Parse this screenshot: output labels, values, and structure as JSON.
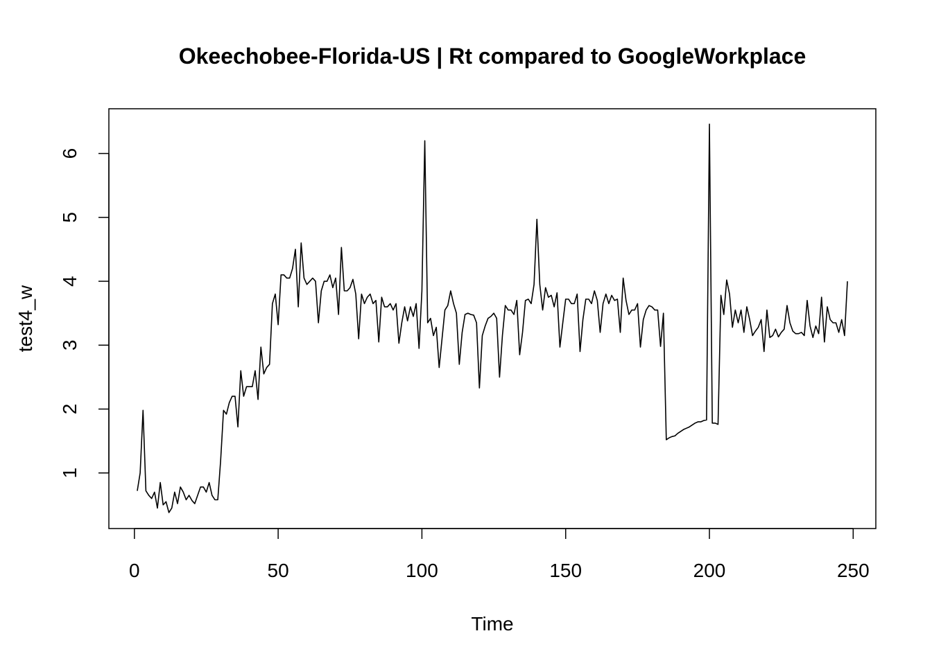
{
  "chart_data": {
    "type": "line",
    "title": "Okeechobee-Florida-US | Rt compared to GoogleWorkplace",
    "xlabel": "Time",
    "ylabel": "test4_w",
    "color": "#000000",
    "x": [
      1,
      2,
      3,
      4,
      5,
      6,
      7,
      8,
      9,
      10,
      11,
      12,
      13,
      14,
      15,
      16,
      17,
      18,
      19,
      20,
      21,
      22,
      23,
      24,
      25,
      26,
      27,
      28,
      29,
      30,
      31,
      32,
      33,
      34,
      35,
      36,
      37,
      38,
      39,
      40,
      41,
      42,
      43,
      44,
      45,
      46,
      47,
      48,
      49,
      50,
      51,
      52,
      53,
      54,
      55,
      56,
      57,
      58,
      59,
      60,
      61,
      62,
      63,
      64,
      65,
      66,
      67,
      68,
      69,
      70,
      71,
      72,
      73,
      74,
      75,
      76,
      77,
      78,
      79,
      80,
      81,
      82,
      83,
      84,
      85,
      86,
      87,
      88,
      89,
      90,
      91,
      92,
      93,
      94,
      95,
      96,
      97,
      98,
      99,
      100,
      101,
      102,
      103,
      104,
      105,
      106,
      107,
      108,
      109,
      110,
      111,
      112,
      113,
      114,
      115,
      116,
      117,
      118,
      119,
      120,
      121,
      122,
      123,
      124,
      125,
      126,
      127,
      128,
      129,
      130,
      131,
      132,
      133,
      134,
      135,
      136,
      137,
      138,
      139,
      140,
      141,
      142,
      143,
      144,
      145,
      146,
      147,
      148,
      149,
      150,
      151,
      152,
      153,
      154,
      155,
      156,
      157,
      158,
      159,
      160,
      161,
      162,
      163,
      164,
      165,
      166,
      167,
      168,
      169,
      170,
      171,
      172,
      173,
      174,
      175,
      176,
      177,
      178,
      179,
      180,
      181,
      182,
      183,
      184,
      185,
      186,
      187,
      188,
      189,
      190,
      191,
      192,
      193,
      194,
      195,
      196,
      197,
      198,
      199,
      200,
      201,
      202,
      203,
      204,
      205,
      206,
      207,
      208,
      209,
      210,
      211,
      212,
      213,
      214,
      215,
      216,
      217,
      218,
      219,
      220,
      221,
      222,
      223,
      224,
      225,
      226,
      227,
      228,
      229,
      230,
      231,
      232,
      233,
      234,
      235,
      236,
      237,
      238,
      239,
      240,
      241,
      242,
      243,
      244,
      245,
      246,
      247,
      248
    ],
    "values": [
      0.72,
      1.0,
      1.98,
      0.72,
      0.65,
      0.6,
      0.7,
      0.45,
      0.85,
      0.5,
      0.55,
      0.38,
      0.45,
      0.7,
      0.52,
      0.78,
      0.7,
      0.58,
      0.65,
      0.57,
      0.52,
      0.65,
      0.78,
      0.78,
      0.7,
      0.85,
      0.65,
      0.58,
      0.58,
      1.2,
      1.98,
      1.92,
      2.1,
      2.2,
      2.2,
      1.72,
      2.6,
      2.2,
      2.35,
      2.35,
      2.35,
      2.6,
      2.15,
      2.97,
      2.55,
      2.65,
      2.7,
      3.65,
      3.8,
      3.32,
      4.1,
      4.1,
      4.05,
      4.05,
      4.2,
      4.5,
      3.6,
      4.6,
      4.05,
      3.95,
      4.0,
      4.05,
      4.0,
      3.35,
      3.85,
      4.0,
      4.0,
      4.1,
      3.9,
      4.05,
      3.48,
      4.53,
      3.85,
      3.85,
      3.9,
      4.03,
      3.8,
      3.1,
      3.8,
      3.65,
      3.75,
      3.8,
      3.65,
      3.7,
      3.05,
      3.75,
      3.6,
      3.6,
      3.65,
      3.55,
      3.65,
      3.03,
      3.35,
      3.6,
      3.38,
      3.6,
      3.45,
      3.65,
      2.95,
      3.85,
      6.2,
      3.35,
      3.42,
      3.15,
      3.28,
      2.65,
      3.1,
      3.55,
      3.62,
      3.85,
      3.65,
      3.5,
      2.7,
      3.2,
      3.48,
      3.5,
      3.48,
      3.47,
      3.35,
      2.33,
      3.15,
      3.3,
      3.42,
      3.45,
      3.5,
      3.42,
      2.5,
      3.15,
      3.62,
      3.55,
      3.55,
      3.48,
      3.7,
      2.85,
      3.2,
      3.7,
      3.72,
      3.65,
      3.95,
      4.97,
      3.95,
      3.55,
      3.9,
      3.75,
      3.78,
      3.6,
      3.82,
      2.97,
      3.35,
      3.72,
      3.72,
      3.65,
      3.65,
      3.8,
      2.9,
      3.4,
      3.72,
      3.72,
      3.65,
      3.85,
      3.7,
      3.2,
      3.65,
      3.8,
      3.65,
      3.78,
      3.7,
      3.72,
      3.2,
      4.05,
      3.7,
      3.48,
      3.55,
      3.55,
      3.65,
      2.97,
      3.4,
      3.55,
      3.62,
      3.6,
      3.55,
      3.55,
      2.98,
      3.5,
      1.52,
      1.55,
      1.57,
      1.58,
      1.62,
      1.65,
      1.68,
      1.7,
      1.72,
      1.75,
      1.78,
      1.8,
      1.8,
      1.82,
      1.83,
      6.46,
      1.78,
      1.78,
      1.76,
      3.78,
      3.48,
      4.02,
      3.8,
      3.28,
      3.55,
      3.35,
      3.55,
      3.2,
      3.6,
      3.4,
      3.15,
      3.22,
      3.28,
      3.4,
      2.9,
      3.55,
      3.12,
      3.15,
      3.25,
      3.13,
      3.2,
      3.25,
      3.62,
      3.35,
      3.22,
      3.18,
      3.18,
      3.2,
      3.15,
      3.7,
      3.3,
      3.12,
      3.3,
      3.18,
      3.75,
      3.05,
      3.6,
      3.4,
      3.35,
      3.35,
      3.2,
      3.4,
      3.15,
      4.0
    ],
    "xlim": [
      -8.88,
      257.88
    ],
    "ylim": [
      0.13,
      6.7
    ],
    "xticks": [
      0,
      50,
      100,
      150,
      200,
      250
    ],
    "yticks": [
      1,
      2,
      3,
      4,
      5,
      6
    ]
  }
}
